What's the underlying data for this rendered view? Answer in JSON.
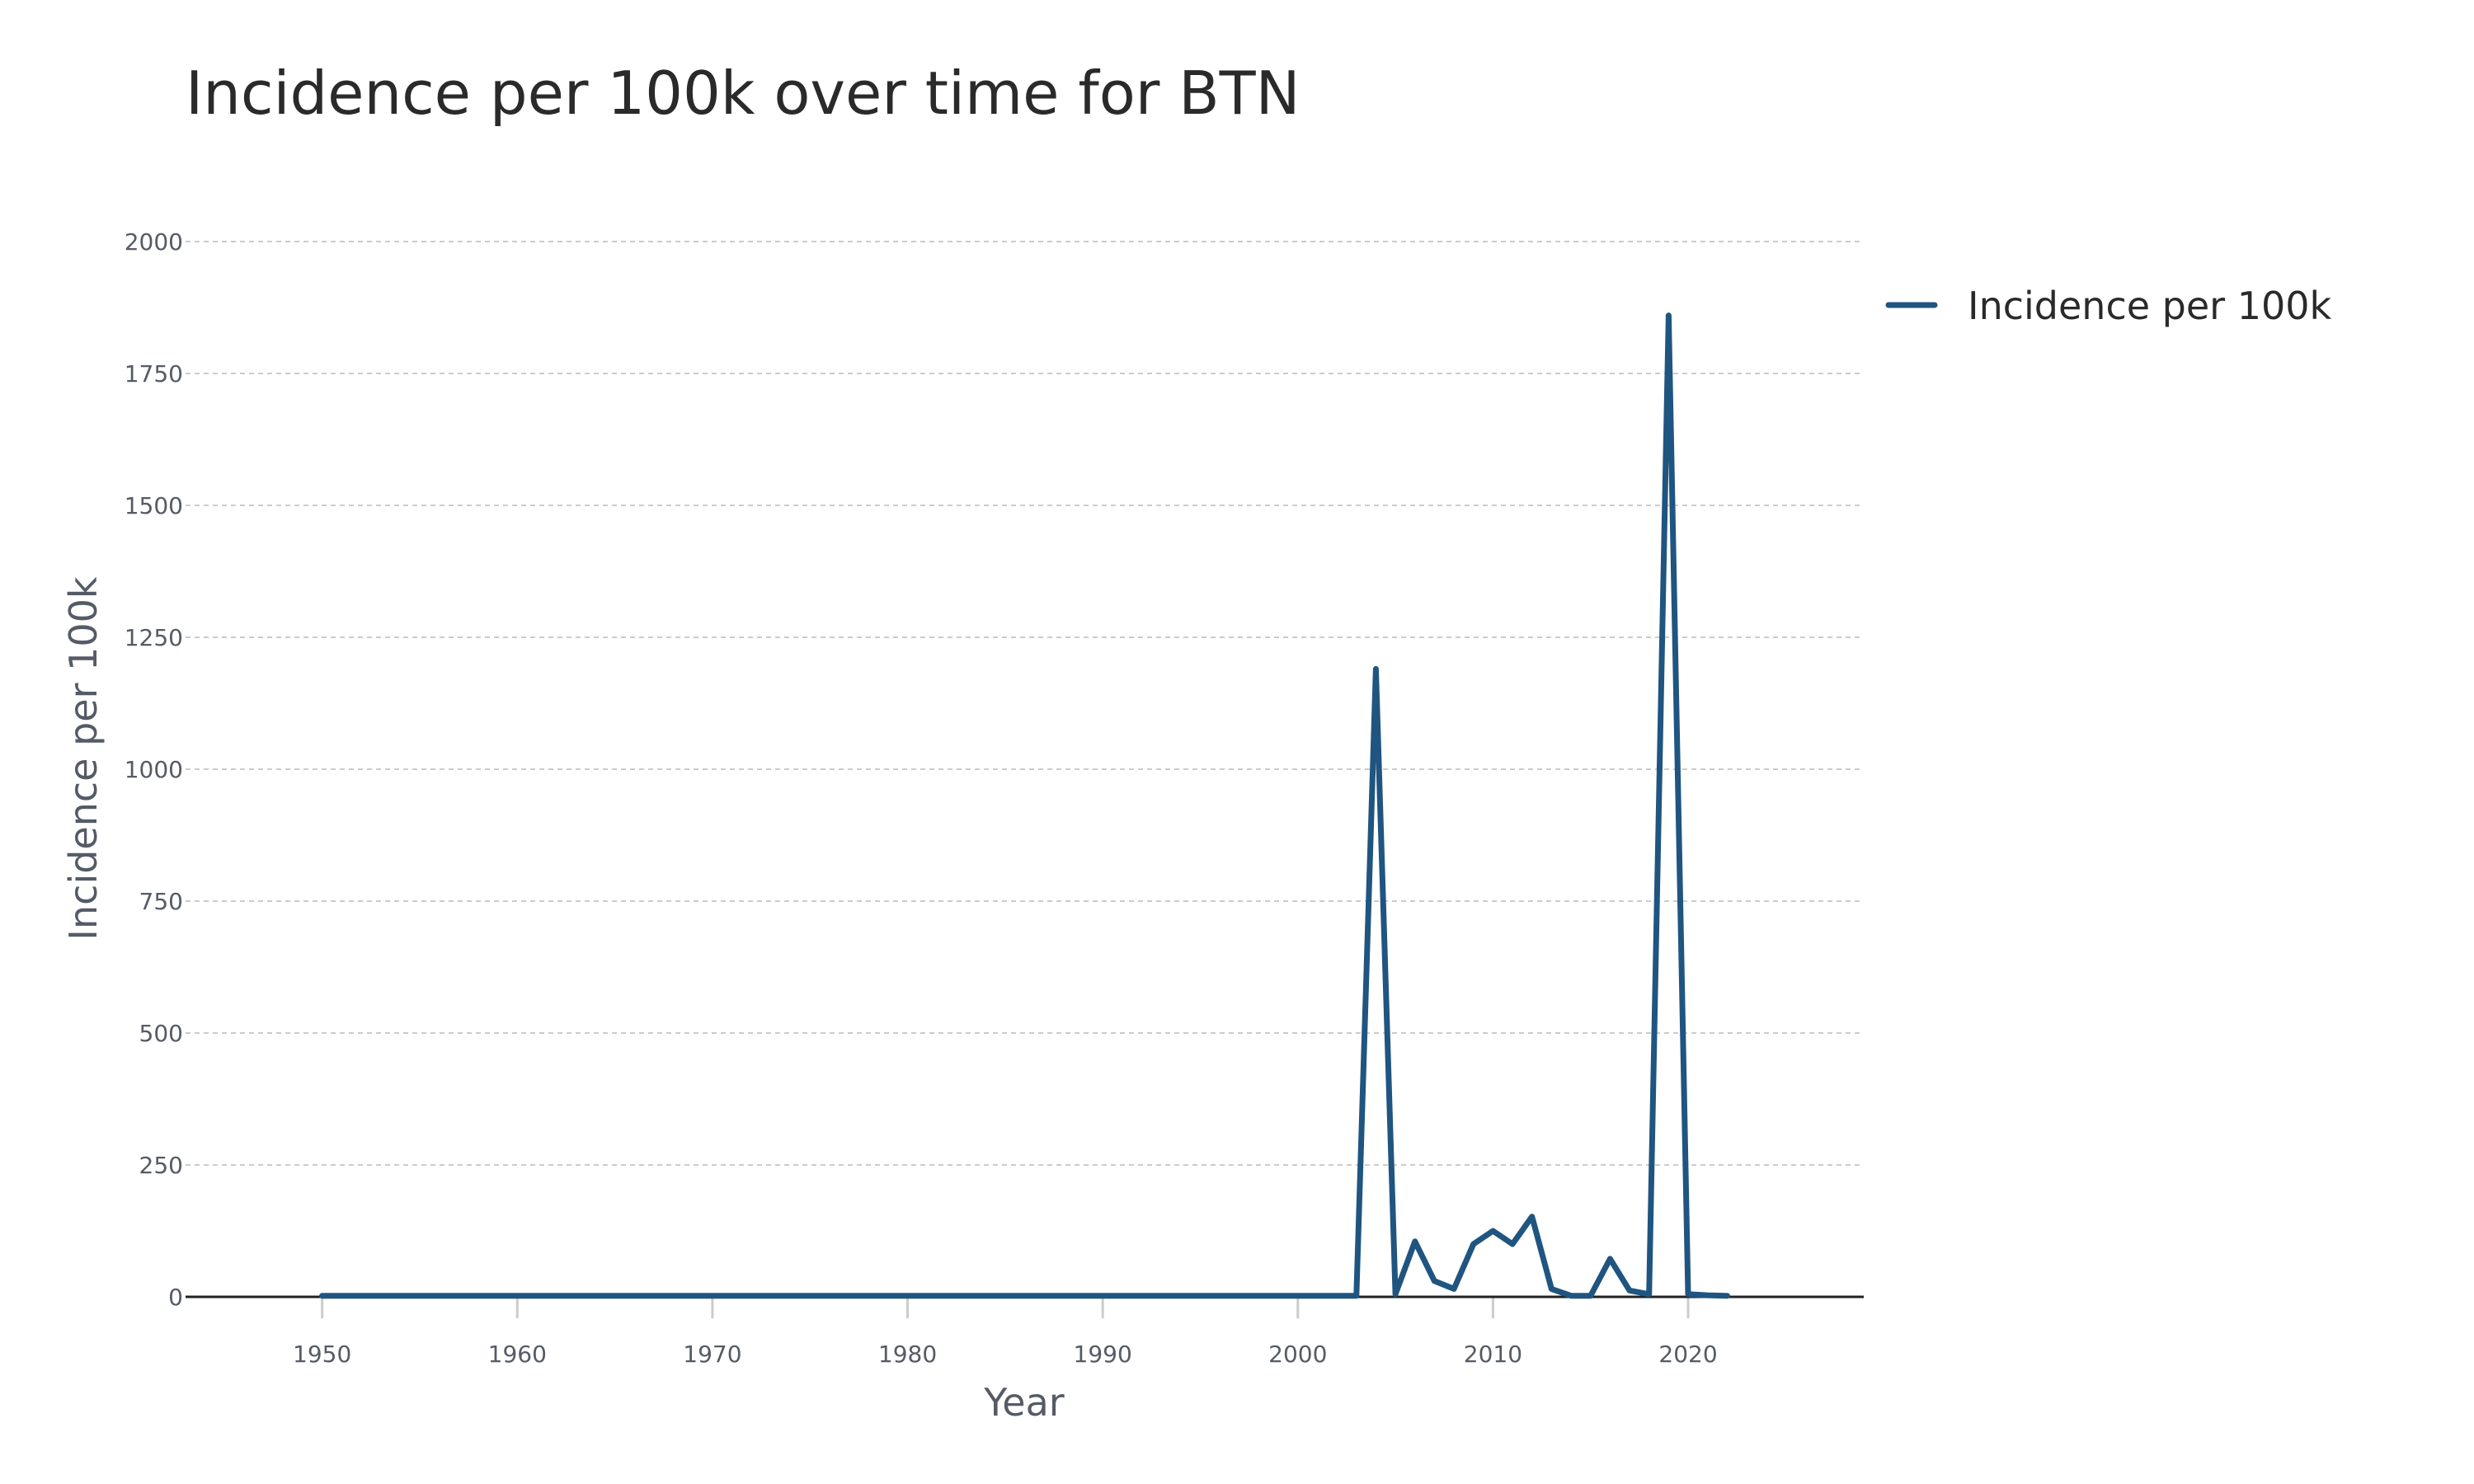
{
  "chart_data": {
    "type": "line",
    "title": "Incidence per 100k over time for BTN",
    "xlabel": "Year",
    "ylabel": "Incidence per 100k",
    "xlim": [
      1943,
      2029
    ],
    "ylim": [
      0,
      2000
    ],
    "x_ticks": [
      1950,
      1960,
      1970,
      1980,
      1990,
      2000,
      2010,
      2020
    ],
    "y_ticks": [
      0,
      250,
      500,
      750,
      1000,
      1250,
      1500,
      1750,
      2000
    ],
    "grid": true,
    "legend_position": "top-right",
    "series": [
      {
        "name": "Incidence per 100k",
        "color": "#1f5580",
        "x": [
          1950,
          1960,
          1970,
          1980,
          1990,
          2000,
          2003,
          2004,
          2005,
          2006,
          2007,
          2008,
          2009,
          2010,
          2011,
          2012,
          2013,
          2014,
          2015,
          2016,
          2017,
          2018,
          2019,
          2020,
          2021,
          2022
        ],
        "y": [
          2,
          2,
          2,
          2,
          2,
          2,
          2,
          1190,
          5,
          105,
          30,
          15,
          100,
          125,
          100,
          152,
          15,
          2,
          2,
          72,
          12,
          5,
          1860,
          5,
          3,
          2
        ]
      }
    ]
  }
}
